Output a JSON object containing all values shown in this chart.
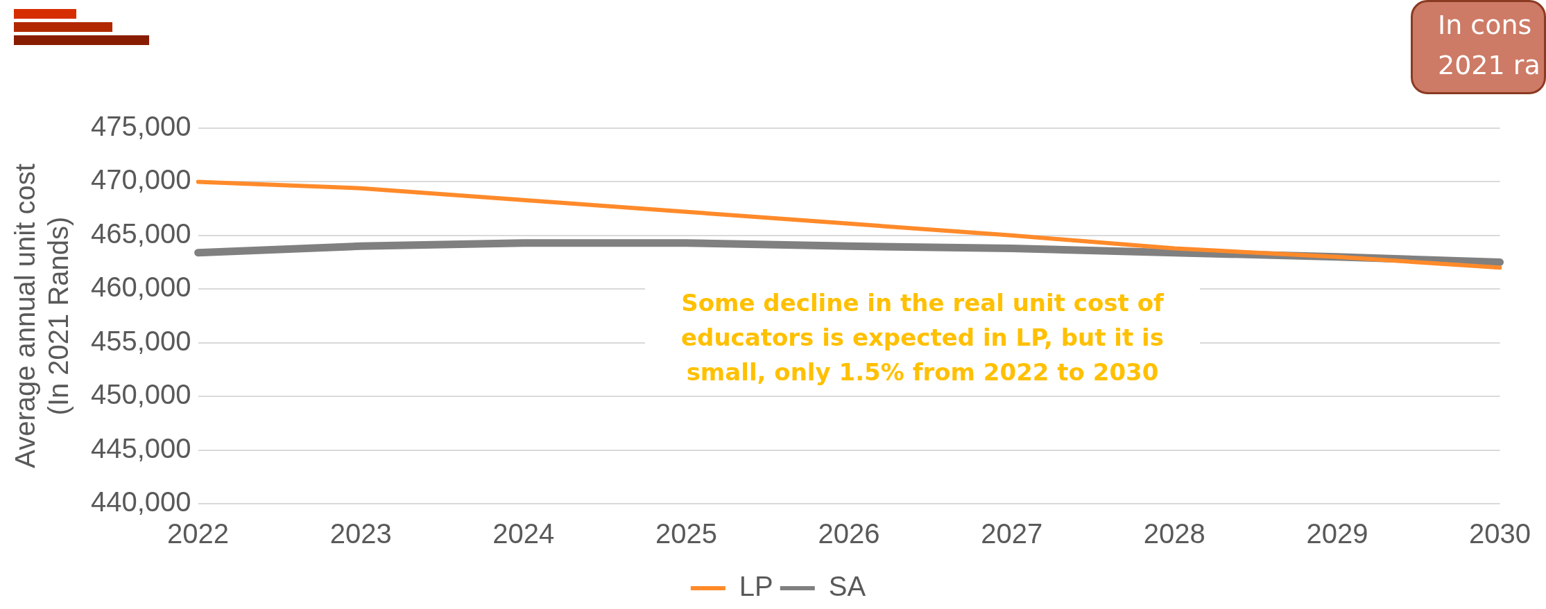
{
  "chart_data": {
    "type": "line",
    "ylabel": "Average annual unit cost\n(In 2021 Rands)",
    "categories": [
      "2022",
      "2023",
      "2024",
      "2025",
      "2026",
      "2027",
      "2028",
      "2029",
      "2030"
    ],
    "series": [
      {
        "name": "LP",
        "color": "#ff8a2a",
        "values": [
          470000,
          469400,
          468300,
          467200,
          466100,
          465000,
          463800,
          463000,
          462000
        ]
      },
      {
        "name": "SA",
        "color": "#808080",
        "values": [
          463400,
          464000,
          464300,
          464300,
          464000,
          463800,
          463400,
          463000,
          462500
        ]
      }
    ],
    "ylim": [
      440000,
      475000
    ],
    "yticks": [
      {
        "value": 440000,
        "label": "440,000"
      },
      {
        "value": 445000,
        "label": "445,000"
      },
      {
        "value": 450000,
        "label": "450,000"
      },
      {
        "value": 455000,
        "label": "455,000"
      },
      {
        "value": 460000,
        "label": "460,000"
      },
      {
        "value": 465000,
        "label": "465,000"
      },
      {
        "value": 470000,
        "label": "470,000"
      },
      {
        "value": 475000,
        "label": "475,000"
      }
    ],
    "grid": "y",
    "legend": "bottom",
    "marker": "none",
    "line_style": "solid",
    "annotations": [
      "Some decline in the real unit cost of educators is expected in LP, but it is small, only 1.5% from 2022 to 2030",
      "In cons\n2021 ra"
    ]
  }
}
